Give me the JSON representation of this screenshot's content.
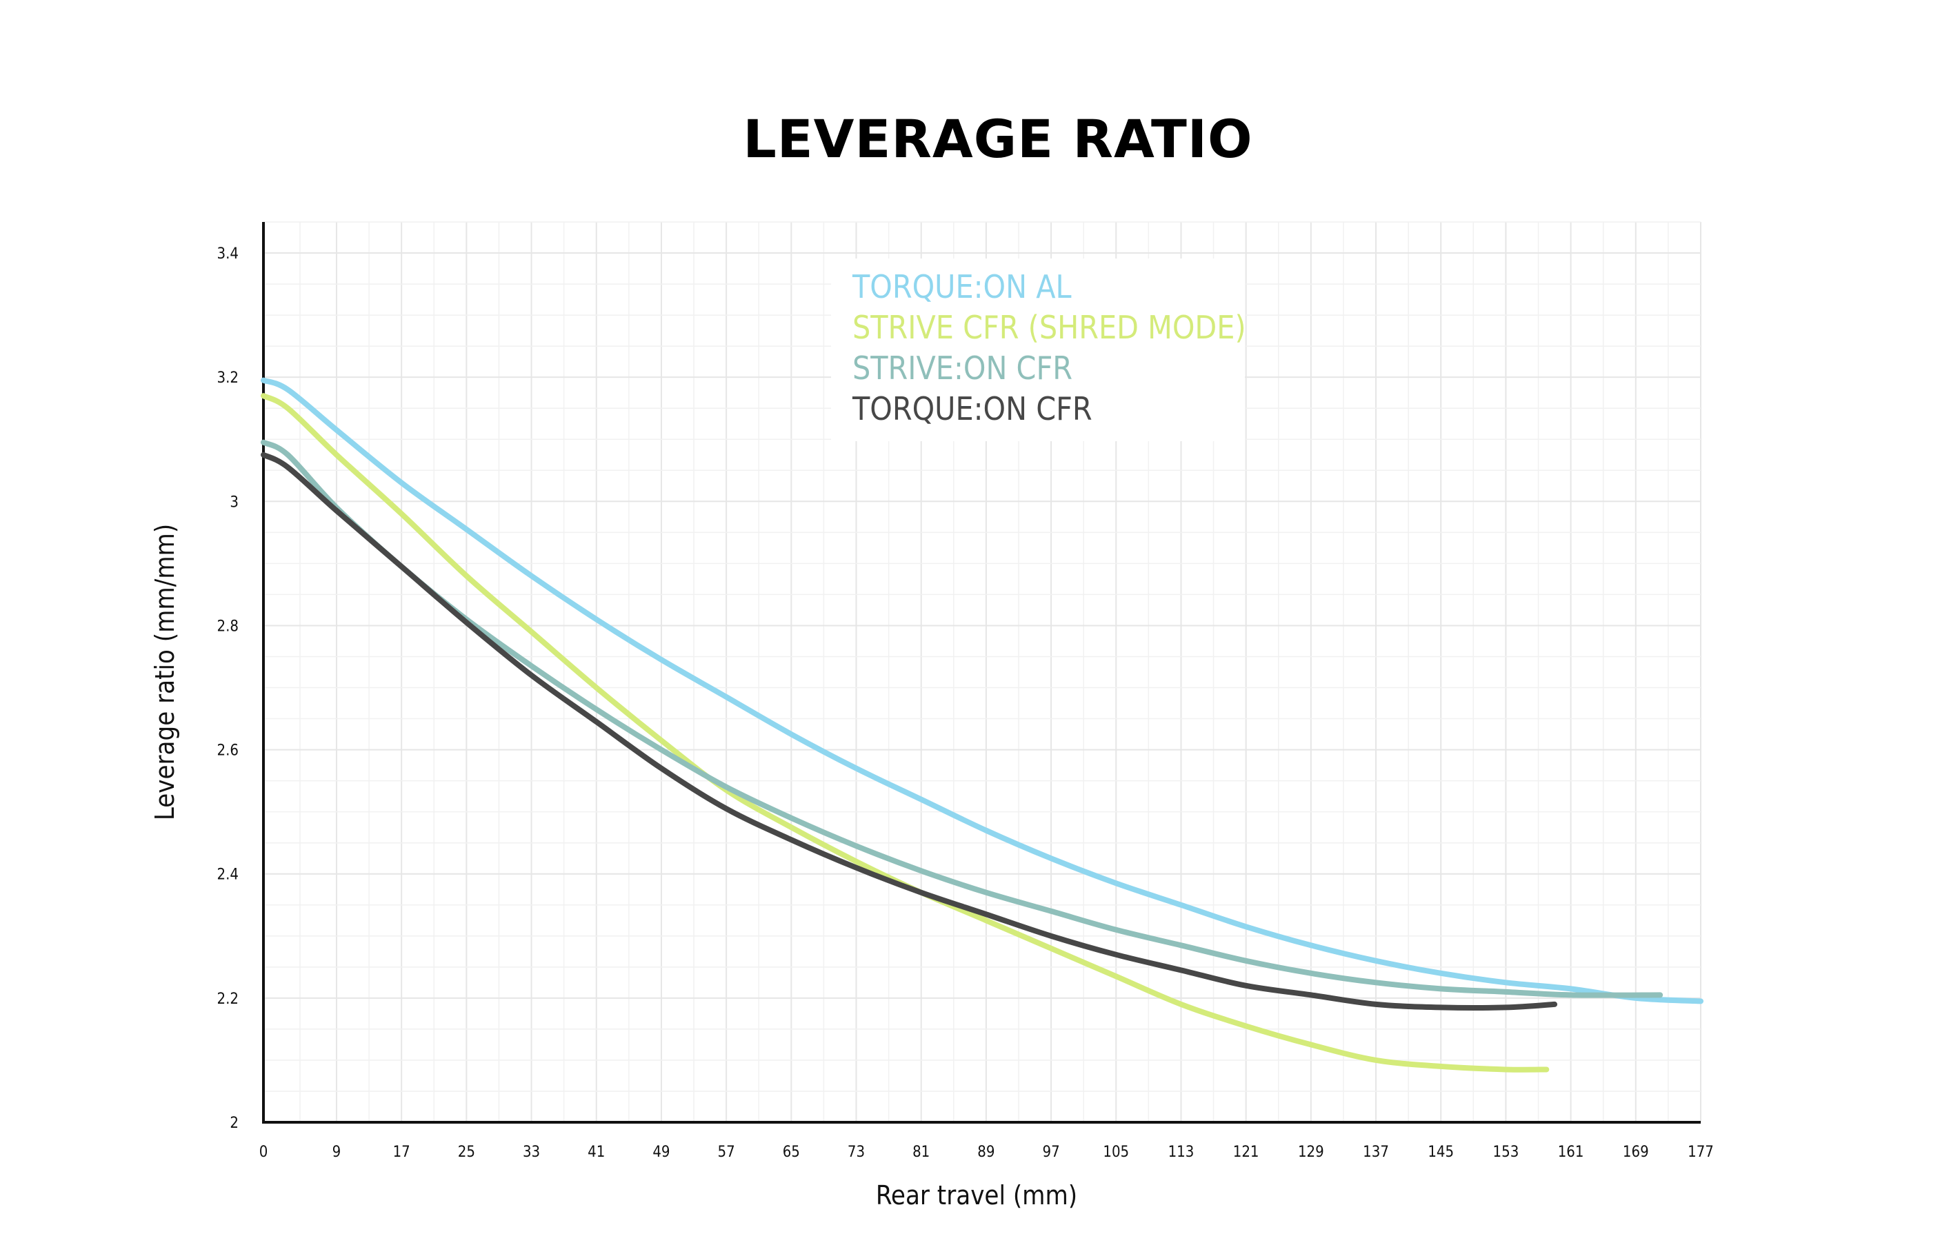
{
  "colors": {
    "torque_al": "#8fd6ef",
    "strive_cfr_shred": "#d4eb7a",
    "strive_on_cfr": "#8fbfba",
    "torque_on_cfr": "#474747",
    "axis": "#111111",
    "grid": "#eeeeee"
  },
  "chart_data": {
    "type": "line",
    "title": "LEVERAGE RATIO",
    "xlabel": "Rear travel (mm)",
    "ylabel": "Leverage ratio (mm/mm)",
    "xlim": [
      0,
      177
    ],
    "ylim": [
      2,
      3.45
    ],
    "x_ticks": [
      "0",
      "9",
      "17",
      "25",
      "33",
      "41",
      "49",
      "57",
      "65",
      "73",
      "81",
      "89",
      "97",
      "105",
      "113",
      "121",
      "129",
      "137",
      "145",
      "153",
      "161",
      "169",
      "177"
    ],
    "x_tick_values": [
      0,
      9,
      17,
      25,
      33,
      41,
      49,
      57,
      65,
      73,
      81,
      89,
      97,
      105,
      113,
      121,
      129,
      137,
      145,
      153,
      161,
      169,
      177
    ],
    "y_ticks": [
      "2",
      "2.2",
      "2.4",
      "2.6",
      "2.8",
      "3",
      "3.2",
      "3.4"
    ],
    "y_tick_values": [
      2,
      2.2,
      2.4,
      2.6,
      2.8,
      3.0,
      3.2,
      3.4
    ],
    "grid": true,
    "legend_position": "top-center",
    "series": [
      {
        "name": "TORQUE:ON AL",
        "color": "#8fd6ef",
        "points": [
          [
            0,
            3.195
          ],
          [
            3,
            3.18
          ],
          [
            9,
            3.115
          ],
          [
            17,
            3.03
          ],
          [
            25,
            2.955
          ],
          [
            33,
            2.88
          ],
          [
            41,
            2.81
          ],
          [
            49,
            2.745
          ],
          [
            57,
            2.685
          ],
          [
            65,
            2.625
          ],
          [
            73,
            2.57
          ],
          [
            81,
            2.52
          ],
          [
            89,
            2.47
          ],
          [
            97,
            2.425
          ],
          [
            105,
            2.385
          ],
          [
            113,
            2.35
          ],
          [
            121,
            2.315
          ],
          [
            129,
            2.285
          ],
          [
            137,
            2.26
          ],
          [
            145,
            2.24
          ],
          [
            153,
            2.225
          ],
          [
            161,
            2.215
          ],
          [
            169,
            2.2
          ],
          [
            177,
            2.195
          ]
        ]
      },
      {
        "name": "STRIVE CFR (SHRED MODE)",
        "color": "#d4eb7a",
        "points": [
          [
            0,
            3.17
          ],
          [
            3,
            3.15
          ],
          [
            9,
            3.075
          ],
          [
            17,
            2.98
          ],
          [
            25,
            2.88
          ],
          [
            33,
            2.79
          ],
          [
            41,
            2.7
          ],
          [
            49,
            2.615
          ],
          [
            57,
            2.535
          ],
          [
            65,
            2.475
          ],
          [
            73,
            2.42
          ],
          [
            81,
            2.37
          ],
          [
            89,
            2.325
          ],
          [
            97,
            2.28
          ],
          [
            105,
            2.235
          ],
          [
            113,
            2.19
          ],
          [
            121,
            2.155
          ],
          [
            129,
            2.125
          ],
          [
            137,
            2.1
          ],
          [
            145,
            2.09
          ],
          [
            153,
            2.085
          ],
          [
            158,
            2.085
          ]
        ]
      },
      {
        "name": "STRIVE:ON CFR",
        "color": "#8fbfba",
        "points": [
          [
            0,
            3.095
          ],
          [
            3,
            3.075
          ],
          [
            9,
            2.99
          ],
          [
            17,
            2.895
          ],
          [
            25,
            2.81
          ],
          [
            33,
            2.735
          ],
          [
            41,
            2.665
          ],
          [
            49,
            2.6
          ],
          [
            57,
            2.54
          ],
          [
            65,
            2.49
          ],
          [
            73,
            2.445
          ],
          [
            81,
            2.405
          ],
          [
            89,
            2.37
          ],
          [
            97,
            2.34
          ],
          [
            105,
            2.31
          ],
          [
            113,
            2.285
          ],
          [
            121,
            2.26
          ],
          [
            129,
            2.24
          ],
          [
            137,
            2.225
          ],
          [
            145,
            2.215
          ],
          [
            153,
            2.21
          ],
          [
            161,
            2.205
          ],
          [
            172,
            2.205
          ]
        ]
      },
      {
        "name": "TORQUE:ON CFR",
        "color": "#474747",
        "points": [
          [
            0,
            3.075
          ],
          [
            3,
            3.055
          ],
          [
            9,
            2.985
          ],
          [
            17,
            2.895
          ],
          [
            25,
            2.805
          ],
          [
            33,
            2.72
          ],
          [
            41,
            2.645
          ],
          [
            49,
            2.57
          ],
          [
            57,
            2.505
          ],
          [
            65,
            2.455
          ],
          [
            73,
            2.41
          ],
          [
            81,
            2.37
          ],
          [
            89,
            2.335
          ],
          [
            97,
            2.3
          ],
          [
            105,
            2.27
          ],
          [
            113,
            2.245
          ],
          [
            121,
            2.22
          ],
          [
            129,
            2.205
          ],
          [
            137,
            2.19
          ],
          [
            145,
            2.185
          ],
          [
            153,
            2.185
          ],
          [
            159,
            2.19
          ]
        ]
      }
    ]
  }
}
